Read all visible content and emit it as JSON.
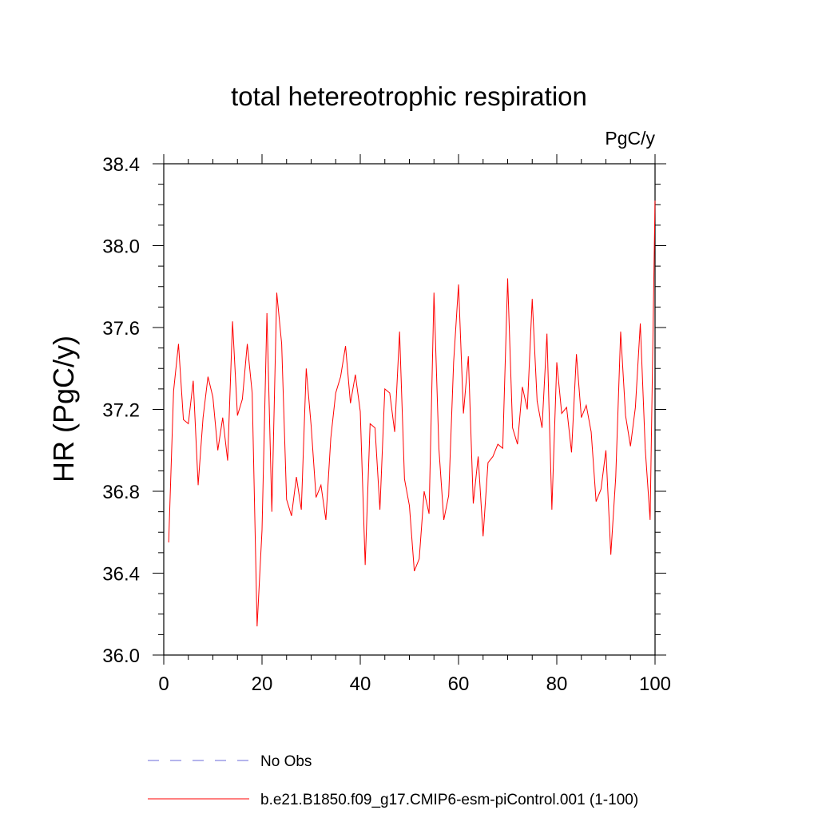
{
  "chart_data": {
    "type": "line",
    "title": "total hetereotrophic respiration",
    "units": "PgC/y",
    "xlabel": "",
    "ylabel": "HR  (PgC/y)",
    "xlim": [
      0,
      100
    ],
    "ylim": [
      36.0,
      38.4
    ],
    "xticks": [
      0,
      20,
      40,
      60,
      80,
      100
    ],
    "xtick_labels": [
      "0",
      "20",
      "40",
      "60",
      "80",
      "100"
    ],
    "yticks": [
      36.0,
      36.4,
      36.8,
      37.2,
      37.6,
      38.0,
      38.4
    ],
    "ytick_labels": [
      "36.0",
      "36.4",
      "36.8",
      "37.2",
      "37.6",
      "38.0",
      "38.4"
    ],
    "grid": false,
    "legend_position": "bottom-center",
    "legend": [
      {
        "label": "No Obs",
        "color": "#6a6ad8",
        "style": "dashed"
      },
      {
        "label": "b.e21.B1850.f09_g17.CMIP6-esm-piControl.001 (1-100)",
        "color": "#ff0000",
        "style": "solid"
      }
    ],
    "series": [
      {
        "name": "b.e21.B1850.f09_g17.CMIP6-esm-piControl.001 (1-100)",
        "color": "#ff0000",
        "x": [
          1,
          2,
          3,
          4,
          5,
          6,
          7,
          8,
          9,
          10,
          11,
          12,
          13,
          14,
          15,
          16,
          17,
          18,
          19,
          20,
          21,
          22,
          23,
          24,
          25,
          26,
          27,
          28,
          29,
          30,
          31,
          32,
          33,
          34,
          35,
          36,
          37,
          38,
          39,
          40,
          41,
          42,
          43,
          44,
          45,
          46,
          47,
          48,
          49,
          50,
          51,
          52,
          53,
          54,
          55,
          56,
          57,
          58,
          59,
          60,
          61,
          62,
          63,
          64,
          65,
          66,
          67,
          68,
          69,
          70,
          71,
          72,
          73,
          74,
          75,
          76,
          77,
          78,
          79,
          80,
          81,
          82,
          83,
          84,
          85,
          86,
          87,
          88,
          89,
          90,
          91,
          92,
          93,
          94,
          95,
          96,
          97,
          98,
          99,
          100
        ],
        "values": [
          36.55,
          37.29,
          37.52,
          37.15,
          37.13,
          37.34,
          36.83,
          37.16,
          37.36,
          37.26,
          37.0,
          37.16,
          36.95,
          37.63,
          37.17,
          37.25,
          37.52,
          37.28,
          36.14,
          36.61,
          37.67,
          36.7,
          37.77,
          37.52,
          36.76,
          36.68,
          36.87,
          36.71,
          37.4,
          37.12,
          36.77,
          36.83,
          36.66,
          37.06,
          37.28,
          37.36,
          37.51,
          37.23,
          37.37,
          37.19,
          36.44,
          37.13,
          37.11,
          36.71,
          37.3,
          37.28,
          37.09,
          37.58,
          36.86,
          36.73,
          36.41,
          36.47,
          36.8,
          36.69,
          37.77,
          37.01,
          36.66,
          36.78,
          37.43,
          37.81,
          37.18,
          37.46,
          36.74,
          36.97,
          36.58,
          36.94,
          36.97,
          37.03,
          37.01,
          37.84,
          37.11,
          37.03,
          37.31,
          37.2,
          37.74,
          37.24,
          37.11,
          37.57,
          36.71,
          37.43,
          37.18,
          37.21,
          36.99,
          37.47,
          37.16,
          37.22,
          37.09,
          36.75,
          36.81,
          37.0,
          36.49,
          36.87,
          37.58,
          37.17,
          37.02,
          37.21,
          37.62,
          37.01,
          36.66,
          38.22
        ]
      }
    ]
  }
}
